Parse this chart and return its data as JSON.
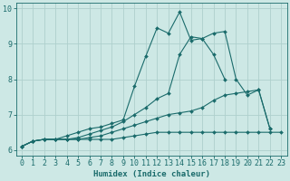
{
  "xlabel": "Humidex (Indice chaleur)",
  "xlim": [
    -0.5,
    23.5
  ],
  "ylim": [
    5.85,
    10.15
  ],
  "xticks": [
    0,
    1,
    2,
    3,
    4,
    5,
    6,
    7,
    8,
    9,
    10,
    11,
    12,
    13,
    14,
    15,
    16,
    17,
    18,
    19,
    20,
    21,
    22,
    23
  ],
  "yticks": [
    6,
    7,
    8,
    9,
    10
  ],
  "bg_color": "#cde8e5",
  "line_color": "#1a6b6b",
  "grid_color": "#aed0cd",
  "lines": [
    {
      "x": [
        0,
        1,
        2,
        3,
        4,
        5,
        6,
        7,
        8,
        9,
        10,
        11,
        12,
        13,
        14,
        15,
        16,
        17,
        18,
        19,
        20,
        21,
        22,
        23
      ],
      "y": [
        6.1,
        6.25,
        6.3,
        6.3,
        6.3,
        6.3,
        6.3,
        6.3,
        6.3,
        6.35,
        6.4,
        6.45,
        6.5,
        6.5,
        6.5,
        6.5,
        6.5,
        6.5,
        6.5,
        6.5,
        6.5,
        6.5,
        6.5,
        6.5
      ]
    },
    {
      "x": [
        0,
        1,
        2,
        3,
        4,
        5,
        6,
        7,
        8,
        9,
        10,
        11,
        12,
        13,
        14,
        15,
        16,
        17,
        18,
        19,
        20,
        21,
        22
      ],
      "y": [
        6.1,
        6.25,
        6.3,
        6.3,
        6.3,
        6.3,
        6.35,
        6.4,
        6.5,
        6.6,
        6.7,
        6.8,
        6.9,
        7.0,
        7.05,
        7.1,
        7.2,
        7.4,
        7.55,
        7.6,
        7.65,
        7.7,
        6.6
      ]
    },
    {
      "x": [
        0,
        1,
        2,
        3,
        4,
        5,
        6,
        7,
        8,
        9,
        10,
        11,
        12,
        13,
        14,
        15,
        16,
        17,
        18,
        19,
        20,
        21,
        22
      ],
      "y": [
        6.1,
        6.25,
        6.3,
        6.3,
        6.3,
        6.35,
        6.45,
        6.55,
        6.65,
        6.8,
        7.0,
        7.2,
        7.45,
        7.6,
        8.7,
        9.2,
        9.15,
        9.3,
        9.35,
        8.0,
        7.55,
        7.7,
        6.6
      ]
    },
    {
      "x": [
        0,
        1,
        2,
        3,
        4,
        5,
        6,
        7,
        8,
        9,
        10,
        11,
        12,
        13,
        14,
        15,
        16,
        17,
        18
      ],
      "y": [
        6.1,
        6.25,
        6.3,
        6.3,
        6.4,
        6.5,
        6.6,
        6.65,
        6.75,
        6.85,
        7.8,
        8.65,
        9.45,
        9.3,
        9.9,
        9.1,
        9.15,
        8.7,
        8.0
      ]
    }
  ],
  "xlabel_fontsize": 6.5,
  "tick_fontsize": 6
}
